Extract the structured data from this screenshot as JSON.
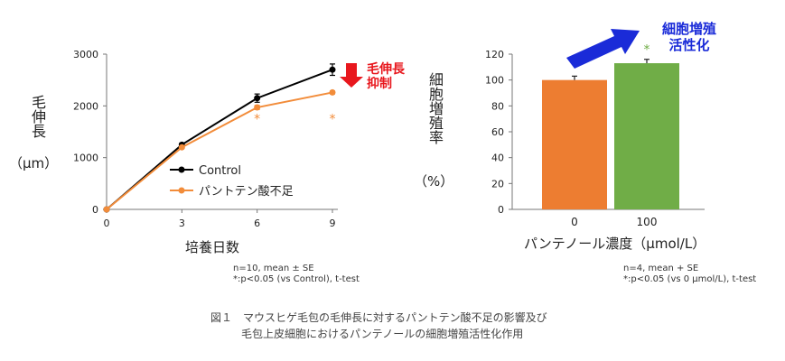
{
  "chart_data": [
    {
      "type": "line",
      "x": [
        0,
        3,
        6,
        9
      ],
      "xlabel": "培養日数",
      "ylabel": "毛伸長",
      "yunit": "（μm）",
      "ylim": [
        0,
        3000
      ],
      "xticks": [
        "0",
        "3",
        "6",
        "9"
      ],
      "yticks": [
        "0",
        "1000",
        "2000",
        "3000"
      ],
      "series": [
        {
          "name": "Control",
          "values": [
            0,
            1250,
            2150,
            2700
          ],
          "error": [
            0,
            30,
            80,
            110
          ],
          "color": "#000000"
        },
        {
          "name": "パントテン酸不足",
          "values": [
            0,
            1200,
            1970,
            2260
          ],
          "error": [
            0,
            20,
            40,
            30
          ],
          "color": "#f28c3a"
        }
      ],
      "significance": [
        {
          "x": 6,
          "label": "*"
        },
        {
          "x": 9,
          "label": "*"
        }
      ],
      "legend": "lower-right",
      "annotation": "毛伸長\n抑制",
      "note1": "n=10, mean ± SE",
      "note2": "*:p<0.05 (vs Control), t-test"
    },
    {
      "type": "bar",
      "categories": [
        "0",
        "100"
      ],
      "values": [
        100,
        113
      ],
      "error": [
        3,
        3
      ],
      "colors": [
        "#ed7d31",
        "#70ad47"
      ],
      "xlabel": "パンテノール濃度（μmol/L）",
      "ylabel": "細胞増殖率",
      "yunit": "（%）",
      "ylim": [
        0,
        120
      ],
      "yticks": [
        "0",
        "20",
        "40",
        "60",
        "80",
        "100",
        "120"
      ],
      "significance": [
        {
          "category": "100",
          "label": "*"
        }
      ],
      "annotation": "細胞増殖\n活性化",
      "note1": "n=4, mean + SE",
      "note2": "*:p<0.05 (vs 0 μmol/L), t-test"
    }
  ],
  "caption": {
    "line1": "図１　マウスヒゲ毛包の毛伸長に対するパントテン酸不足の影響及び",
    "line2": "毛包上皮細胞におけるパンテノールの細胞増殖活性化作用"
  },
  "colors": {
    "control": "#000000",
    "deficient": "#f28c3a",
    "bar0": "#ed7d31",
    "bar100": "#70ad47",
    "red": "#e8171d",
    "blue": "#1a2bd8"
  }
}
